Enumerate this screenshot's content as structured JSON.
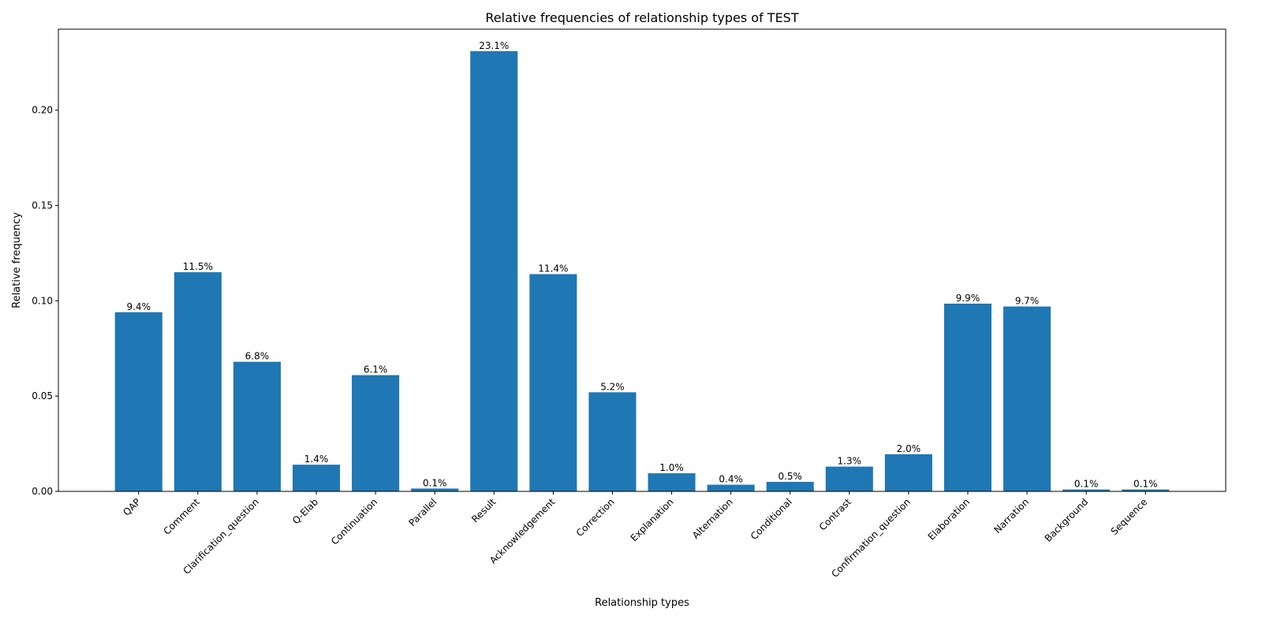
{
  "chart_data": {
    "type": "bar",
    "title": "Relative frequencies of relationship types of TEST",
    "xlabel": "Relationship types",
    "ylabel": "Relative frequency",
    "ylim": [
      0,
      0.2425
    ],
    "yticks": [
      0.0,
      0.05,
      0.1,
      0.15,
      0.2
    ],
    "ytick_labels": [
      "0.00",
      "0.05",
      "0.10",
      "0.15",
      "0.20"
    ],
    "bar_color": "#1f77b4",
    "categories": [
      "QAP",
      "Comment",
      "Clarification_question",
      "Q-Elab",
      "Continuation",
      "Parallel",
      "Result",
      "Acknowledgement",
      "Correction",
      "Explanation",
      "Alternation",
      "Conditional",
      "Contrast",
      "Confirmation_question",
      "Elaboration",
      "Narration",
      "Background",
      "Sequence"
    ],
    "values": [
      0.094,
      0.115,
      0.068,
      0.014,
      0.061,
      0.0015,
      0.231,
      0.114,
      0.052,
      0.0095,
      0.0035,
      0.005,
      0.013,
      0.0195,
      0.0985,
      0.097,
      0.001,
      0.001
    ],
    "data_labels": [
      "9.4%",
      "11.5%",
      "6.8%",
      "1.4%",
      "6.1%",
      "0.1%",
      "23.1%",
      "11.4%",
      "5.2%",
      "1.0%",
      "0.4%",
      "0.5%",
      "1.3%",
      "2.0%",
      "9.9%",
      "9.7%",
      "0.1%",
      "0.1%"
    ],
    "grid": false,
    "legend": "none"
  }
}
